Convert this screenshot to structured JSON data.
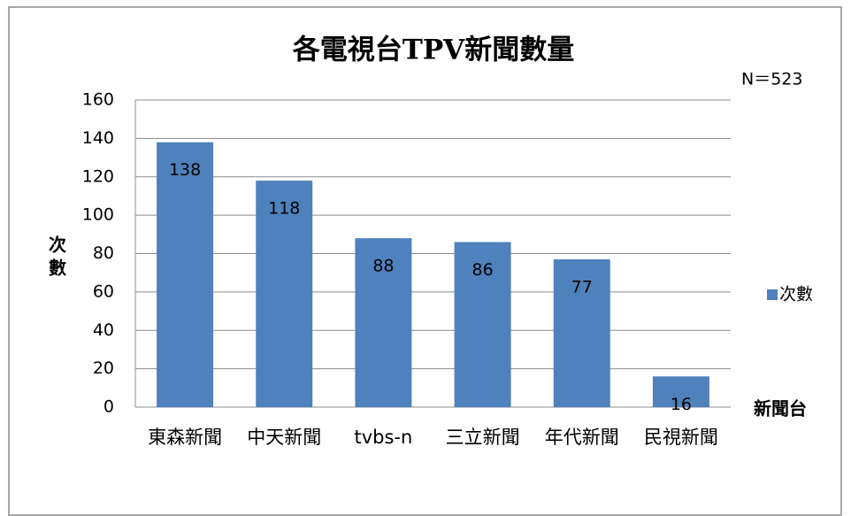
{
  "chart_data": {
    "type": "bar",
    "title": "各電視台TPV新聞數量",
    "annotation": "N＝523",
    "x_label": "新聞台",
    "y_label": "次數",
    "categories": [
      "東森新聞",
      "中天新聞",
      "tvbs-n",
      "三立新聞",
      "年代新聞",
      "民視新聞"
    ],
    "series": [
      {
        "name": "次數",
        "color": "#4f81bd",
        "values": [
          138,
          118,
          88,
          86,
          77,
          16
        ]
      }
    ],
    "ylim": [
      0,
      160
    ],
    "yticks": [
      0,
      20,
      40,
      60,
      80,
      100,
      120,
      140,
      160
    ],
    "grid": true,
    "legend": "right"
  }
}
